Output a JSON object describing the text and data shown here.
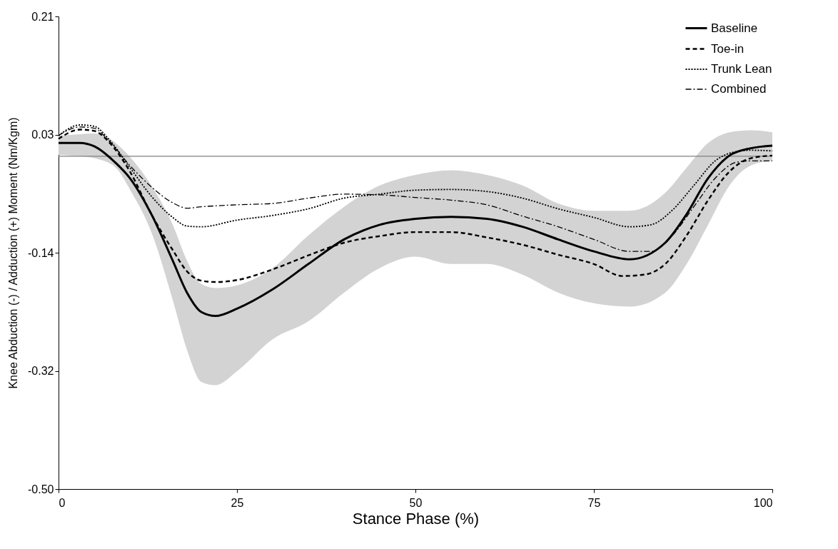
{
  "chart_data": {
    "type": "line",
    "xlabel": "Stance Phase (%)",
    "ylabel": "Knee Abduction (-) / Adduction (+) Moment (Nm/Kgm)",
    "xlim": [
      0,
      100
    ],
    "xticks": [
      0,
      25,
      50,
      75,
      100
    ],
    "ylim": [
      -0.5,
      0.21
    ],
    "yticks": [
      0.21,
      {
        "value": 0.0325,
        "label": "0.03"
      },
      {
        "value": -0.145,
        "label": "-0.14"
      },
      {
        "value": -0.3225,
        "label": "-0.32"
      },
      {
        "value": -0.5,
        "label": "-0.50"
      }
    ],
    "grid": false,
    "legend": "top right",
    "marker": "none",
    "ref_lines": [
      {
        "axis": "y",
        "value": 0,
        "color": "#808080"
      }
    ],
    "series": [
      {
        "name": "Baseline",
        "color": "#000000",
        "line_style": "solid",
        "x": [
          0,
          3,
          5,
          8,
          10,
          13,
          16,
          18,
          20,
          22,
          25,
          30,
          35,
          40,
          45,
          50,
          55,
          60,
          65,
          70,
          75,
          80,
          85,
          88,
          91,
          94,
          97,
          100
        ],
        "values": [
          0.02,
          0.02,
          0.015,
          -0.01,
          -0.033,
          -0.087,
          -0.157,
          -0.205,
          -0.234,
          -0.24,
          -0.229,
          -0.2,
          -0.162,
          -0.125,
          -0.103,
          -0.094,
          -0.091,
          -0.094,
          -0.106,
          -0.125,
          -0.143,
          -0.155,
          -0.13,
          -0.087,
          -0.033,
          0.001,
          0.012,
          0.016
        ],
        "upper": [
          0.031,
          0.033,
          0.034,
          0.02,
          -0.001,
          -0.044,
          -0.103,
          -0.157,
          -0.192,
          -0.198,
          -0.194,
          -0.168,
          -0.119,
          -0.076,
          -0.044,
          -0.028,
          -0.021,
          -0.028,
          -0.044,
          -0.071,
          -0.082,
          -0.082,
          -0.055,
          -0.017,
          0.02,
          0.036,
          0.039,
          0.036
        ],
        "lower": [
          0.002,
          0.0,
          -0.003,
          -0.017,
          -0.05,
          -0.114,
          -0.216,
          -0.291,
          -0.339,
          -0.344,
          -0.323,
          -0.275,
          -0.248,
          -0.205,
          -0.168,
          -0.151,
          -0.162,
          -0.162,
          -0.178,
          -0.205,
          -0.221,
          -0.226,
          -0.205,
          -0.162,
          -0.103,
          -0.044,
          -0.014,
          -0.007
        ]
      },
      {
        "name": "Toe-in",
        "color": "#000000",
        "line_style": "dashed",
        "x": [
          0,
          3,
          5,
          7,
          10,
          13,
          16,
          18,
          20,
          22,
          25,
          30,
          35,
          40,
          45,
          50,
          55,
          60,
          65,
          70,
          75,
          79,
          82,
          85,
          88,
          91,
          94,
          97,
          100
        ],
        "values": [
          0.026,
          0.04,
          0.038,
          0.022,
          -0.023,
          -0.087,
          -0.141,
          -0.173,
          -0.187,
          -0.189,
          -0.186,
          -0.17,
          -0.149,
          -0.13,
          -0.12,
          -0.114,
          -0.114,
          -0.122,
          -0.133,
          -0.148,
          -0.162,
          -0.18,
          -0.178,
          -0.162,
          -0.119,
          -0.066,
          -0.023,
          -0.003,
          0.001
        ]
      },
      {
        "name": "Trunk Lean",
        "color": "#000000",
        "line_style": "dotted",
        "x": [
          0,
          3,
          5,
          7,
          10,
          13,
          16,
          18,
          20,
          25,
          30,
          35,
          40,
          45,
          50,
          55,
          60,
          65,
          70,
          75,
          80,
          83,
          86,
          89,
          92,
          95,
          97,
          100
        ],
        "values": [
          0.031,
          0.047,
          0.045,
          0.026,
          -0.017,
          -0.06,
          -0.092,
          -0.105,
          -0.106,
          -0.096,
          -0.089,
          -0.079,
          -0.063,
          -0.057,
          -0.051,
          -0.05,
          -0.053,
          -0.063,
          -0.079,
          -0.092,
          -0.106,
          -0.103,
          -0.081,
          -0.044,
          -0.007,
          0.007,
          0.009,
          0.008
        ]
      },
      {
        "name": "Combined",
        "color": "#000000",
        "line_style": "dashdot",
        "x": [
          0,
          3,
          5,
          7,
          10,
          13,
          16,
          18,
          20,
          25,
          30,
          35,
          40,
          45,
          50,
          55,
          60,
          65,
          70,
          75,
          80,
          83,
          86,
          89,
          92,
          95,
          97,
          100
        ],
        "values": [
          0.031,
          0.044,
          0.042,
          0.024,
          -0.014,
          -0.046,
          -0.07,
          -0.078,
          -0.076,
          -0.073,
          -0.071,
          -0.063,
          -0.057,
          -0.058,
          -0.062,
          -0.066,
          -0.073,
          -0.09,
          -0.106,
          -0.125,
          -0.143,
          -0.143,
          -0.119,
          -0.076,
          -0.033,
          -0.009,
          -0.007,
          -0.007
        ]
      }
    ]
  }
}
